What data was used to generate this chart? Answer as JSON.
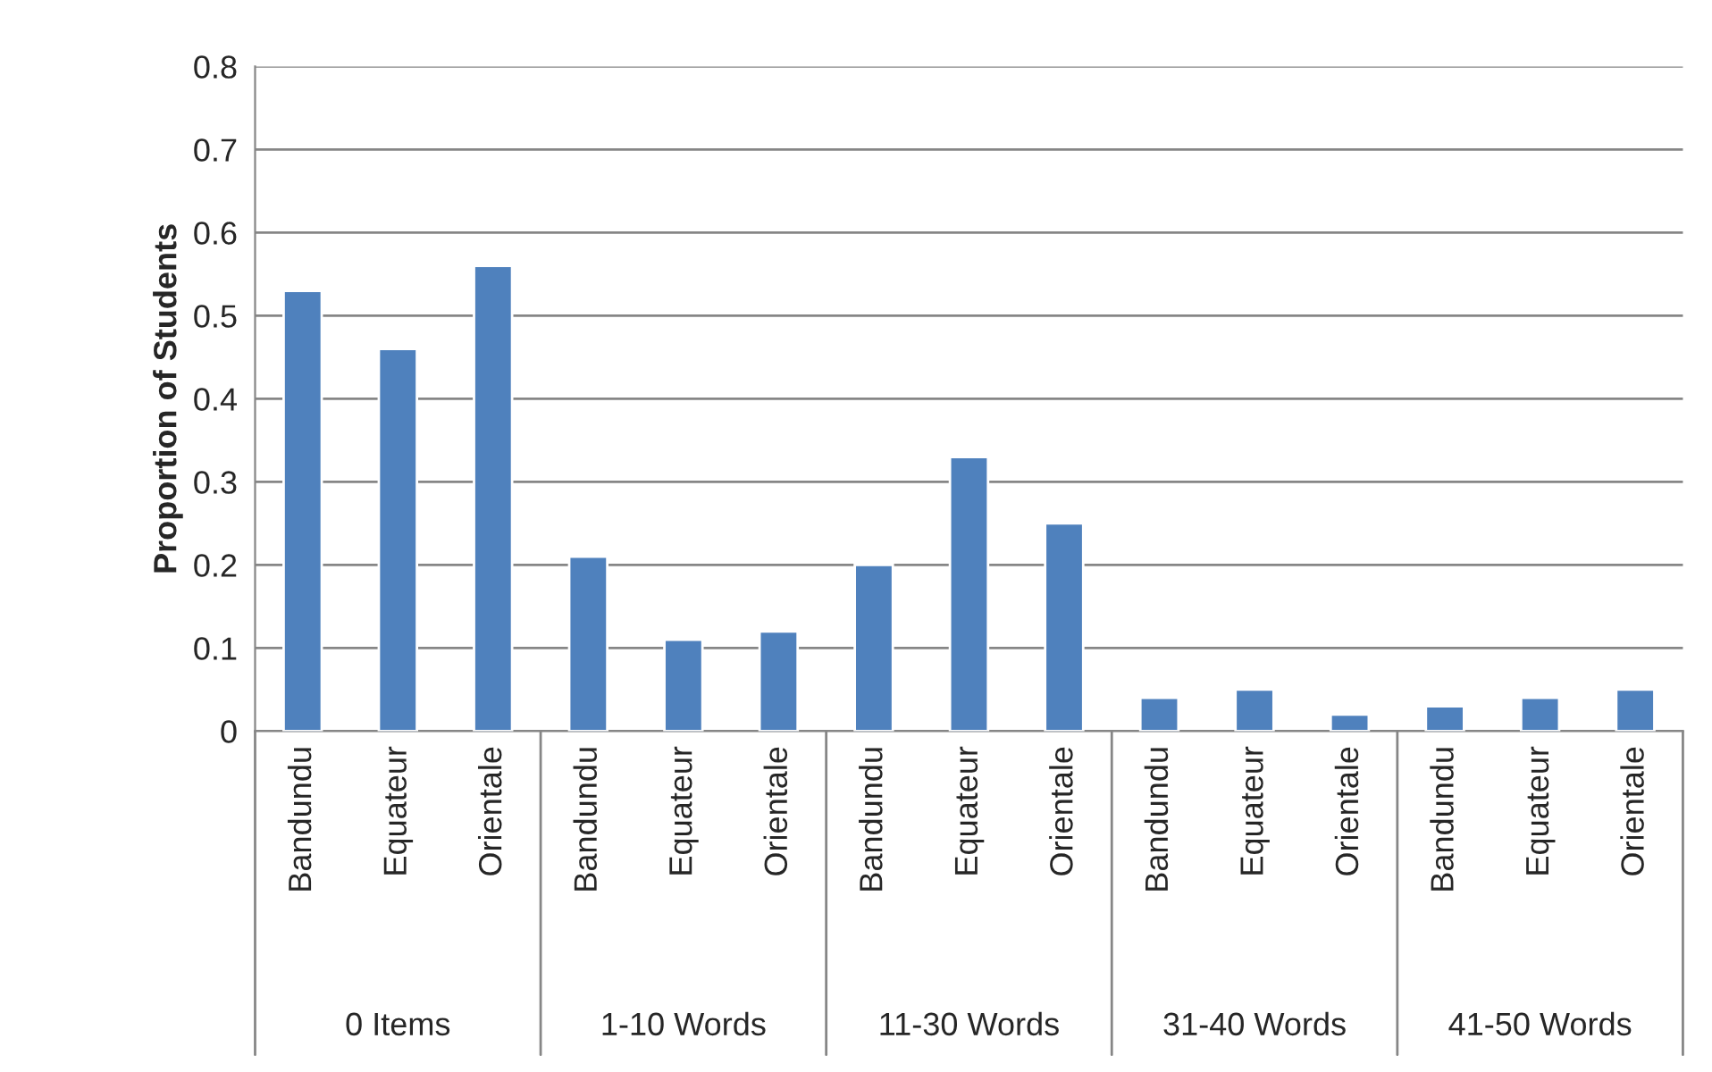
{
  "chart_data": {
    "type": "bar",
    "ylabel": "Proportion of Students",
    "categories": [
      "Bandundu",
      "Equateur",
      "Orientale",
      "Bandundu",
      "Equateur",
      "Orientale",
      "Bandundu",
      "Equateur",
      "Orientale",
      "Bandundu",
      "Equateur",
      "Orientale",
      "Bandundu",
      "Equateur",
      "Orientale"
    ],
    "values": [
      0.53,
      0.46,
      0.56,
      0.21,
      0.11,
      0.12,
      0.2,
      0.33,
      0.25,
      0.04,
      0.05,
      0.02,
      0.03,
      0.04,
      0.05
    ],
    "color": "#4f81bd",
    "ylim": [
      0,
      0.8
    ],
    "yticks": [
      0,
      0.1,
      0.2,
      0.3,
      0.4,
      0.5,
      0.6,
      0.7,
      0.8
    ],
    "grid": "y",
    "annotations": [
      "0 Items",
      "1-10 Words",
      "11-30 Words",
      "31-40 Words",
      "41-50 Words"
    ]
  }
}
